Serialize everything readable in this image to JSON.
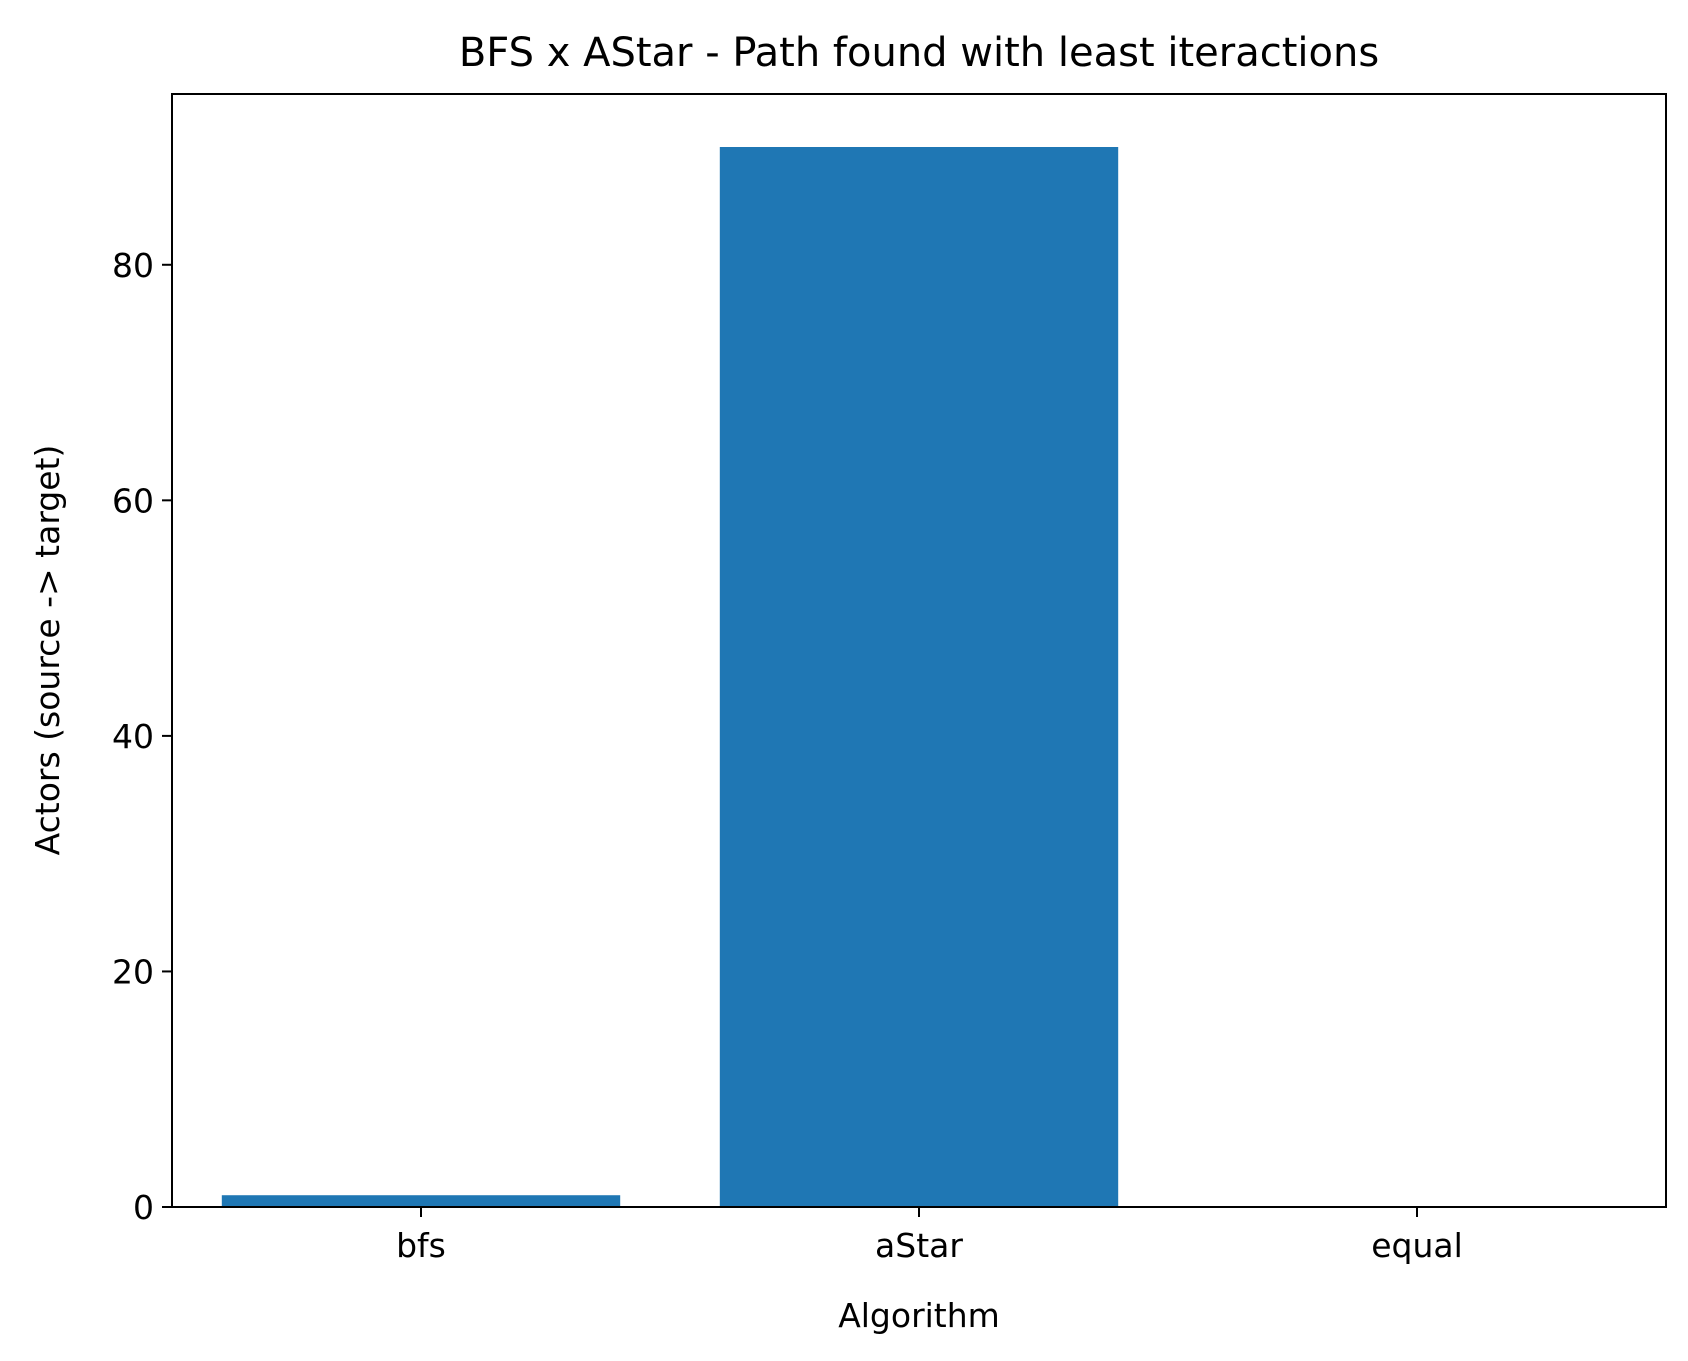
{
  "chart_data": {
    "type": "bar",
    "title": "BFS x AStar - Path found with least iteractions",
    "xlabel": "Algorithm",
    "ylabel": "Actors (source -> target)",
    "categories": [
      "bfs",
      "aStar",
      "equal"
    ],
    "values": [
      1,
      90,
      0
    ],
    "ylim": [
      0,
      94.5
    ],
    "yticks": [
      0,
      20,
      40,
      60,
      80
    ],
    "grid": false,
    "bar_color": "#1f77b4"
  }
}
